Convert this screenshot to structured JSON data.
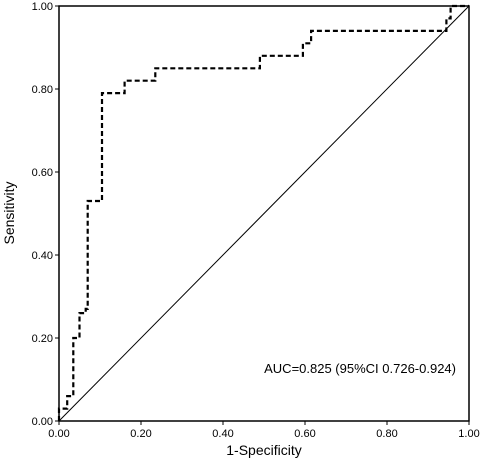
{
  "chart_data": {
    "type": "line",
    "xlabel": "1-Specificity",
    "ylabel": "Sensitivity",
    "xlim": [
      0,
      1
    ],
    "ylim": [
      0,
      1
    ],
    "xticks": [
      "0.00",
      "0.20",
      "0.40",
      "0.60",
      "0.80",
      "1.00"
    ],
    "yticks": [
      "0.00",
      "0.20",
      "0.40",
      "0.60",
      "0.80",
      "1.00"
    ],
    "grid": false,
    "annotation": "AUC=0.825 (95%CI 0.726-0.924)",
    "series": [
      {
        "style": "dashed",
        "color": "#000000",
        "points": [
          [
            0.0,
            0.0
          ],
          [
            0.0,
            0.03
          ],
          [
            0.02,
            0.03
          ],
          [
            0.02,
            0.06
          ],
          [
            0.035,
            0.06
          ],
          [
            0.035,
            0.2
          ],
          [
            0.05,
            0.2
          ],
          [
            0.05,
            0.26
          ],
          [
            0.065,
            0.26
          ],
          [
            0.065,
            0.27
          ],
          [
            0.07,
            0.27
          ],
          [
            0.07,
            0.53
          ],
          [
            0.105,
            0.53
          ],
          [
            0.105,
            0.79
          ],
          [
            0.16,
            0.79
          ],
          [
            0.16,
            0.82
          ],
          [
            0.235,
            0.82
          ],
          [
            0.235,
            0.85
          ],
          [
            0.49,
            0.85
          ],
          [
            0.49,
            0.88
          ],
          [
            0.595,
            0.88
          ],
          [
            0.595,
            0.91
          ],
          [
            0.615,
            0.91
          ],
          [
            0.615,
            0.94
          ],
          [
            0.945,
            0.94
          ],
          [
            0.945,
            0.97
          ],
          [
            0.955,
            0.97
          ],
          [
            0.955,
            1.0
          ],
          [
            1.0,
            1.0
          ]
        ]
      },
      {
        "style": "solid",
        "color": "#000000",
        "points": [
          [
            0,
            0
          ],
          [
            1,
            1
          ]
        ]
      }
    ]
  }
}
